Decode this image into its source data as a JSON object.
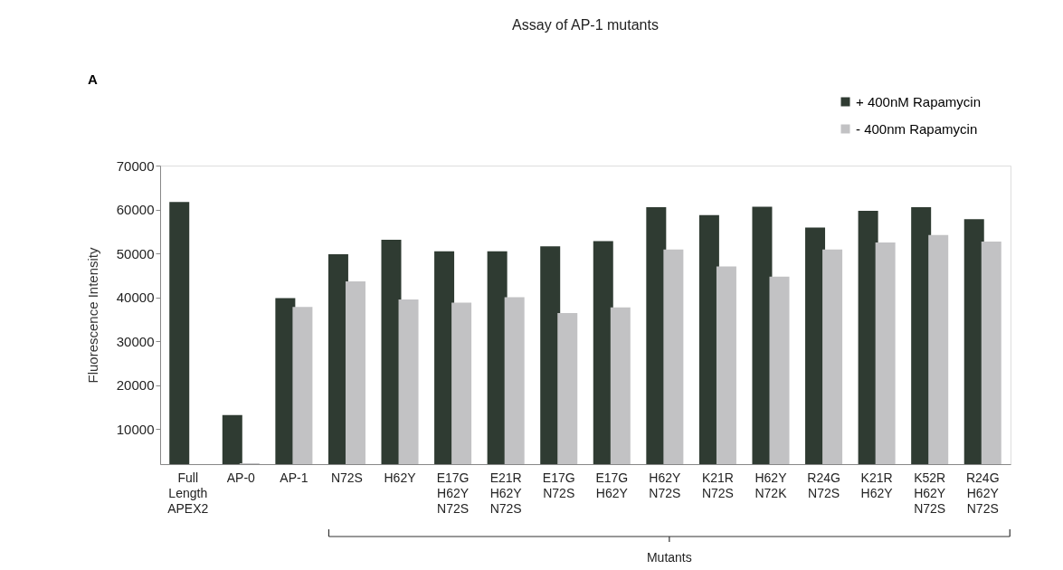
{
  "chart_data": {
    "type": "bar",
    "title": "Assay of AP-1 mutants",
    "ylabel": "Fluorescence Intensity",
    "categories": [
      "Full\nLength\nAPEX2",
      "AP-0",
      "AP-1",
      "N72S",
      "H62Y",
      "E17G\nH62Y\nN72S",
      "E21R\nH62Y\nN72S",
      "E17G\nN72S",
      "E17G\nH62Y",
      "H62Y\nN72S",
      "K21R\nN72S",
      "H62Y\nN72K",
      "R24G\nN72S",
      "K21R\nH62Y",
      "K52R\nH62Y\nN72S",
      "R24G\nH62Y\nN72S"
    ],
    "series": [
      {
        "name": "+ 400nM Rapamycin",
        "color": "#2f3b32",
        "values": [
          61700,
          13200,
          39800,
          49800,
          53100,
          50500,
          50500,
          51600,
          52800,
          60500,
          58700,
          60600,
          55900,
          59700,
          60500,
          57800
        ]
      },
      {
        "name": "- 400nm Rapamycin",
        "color": "#c2c2c4",
        "values": [
          null,
          2200,
          37800,
          43600,
          39500,
          38800,
          40000,
          36400,
          37700,
          50900,
          47000,
          44700,
          50900,
          52500,
          54200,
          52700
        ]
      }
    ],
    "ylim": [
      2000,
      70000
    ],
    "yticks": [
      10000,
      20000,
      30000,
      40000,
      50000,
      60000,
      70000
    ],
    "grid": false,
    "legend": "top right",
    "annotations": [
      "A",
      "Mutants"
    ]
  }
}
